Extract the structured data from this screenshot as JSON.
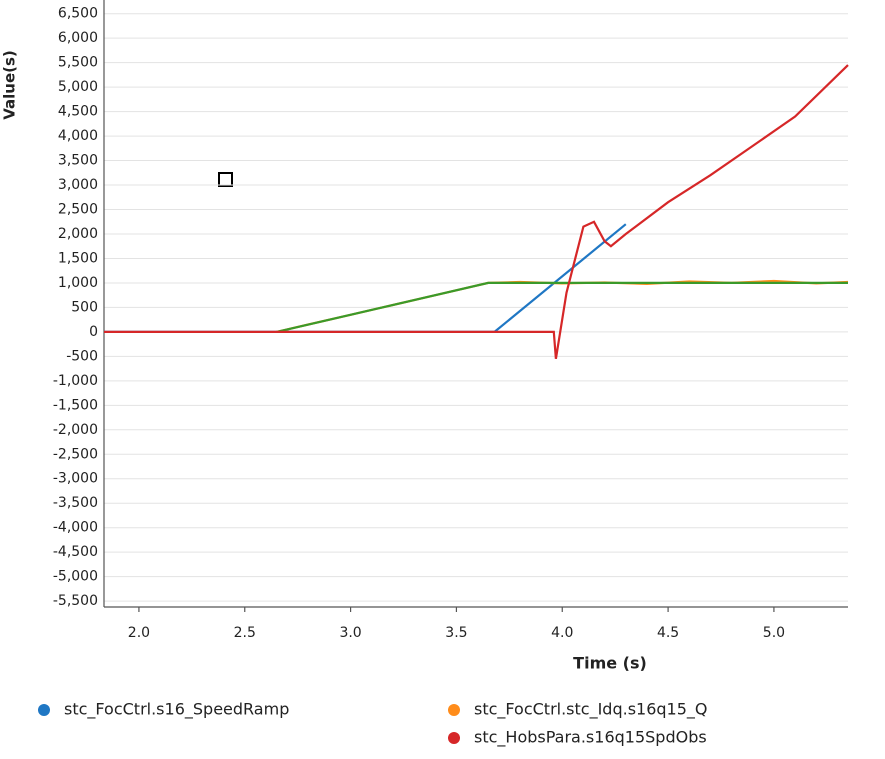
{
  "chart_data": {
    "type": "line",
    "y_label": "Value(s)",
    "x_label": "Time (s)",
    "xlim": [
      1.835,
      5.35
    ],
    "ylim": [
      -5620,
      6780
    ],
    "xticks": [
      {
        "value": 2,
        "label": "2.0"
      },
      2.5,
      {
        "value": 3,
        "label": "3.0"
      },
      3.5,
      {
        "value": 4,
        "label": "4.0"
      },
      4.5,
      {
        "value": 5,
        "label": "5.0"
      }
    ],
    "yticks": [
      {
        "value": 6500,
        "label": "6,500"
      },
      {
        "value": 6000,
        "label": "6,000"
      },
      {
        "value": 5500,
        "label": "5,500"
      },
      {
        "value": 5000,
        "label": "5,000"
      },
      {
        "value": 4500,
        "label": "4,500"
      },
      {
        "value": 4000,
        "label": "4,000"
      },
      {
        "value": 3500,
        "label": "3,500"
      },
      {
        "value": 3000,
        "label": "3,000"
      },
      {
        "value": 2500,
        "label": "2,500"
      },
      {
        "value": 2000,
        "label": "2,000"
      },
      {
        "value": 1500,
        "label": "1,500"
      },
      {
        "value": 1000,
        "label": "1,000"
      },
      500,
      0,
      -500,
      {
        "value": -1000,
        "label": "-1,000"
      },
      {
        "value": -1500,
        "label": "-1,500"
      },
      {
        "value": -2000,
        "label": "-2,000"
      },
      {
        "value": -2500,
        "label": "-2,500"
      },
      {
        "value": -3000,
        "label": "-3,000"
      },
      {
        "value": -3500,
        "label": "-3,500"
      },
      {
        "value": -4000,
        "label": "-4,000"
      },
      {
        "value": -4500,
        "label": "-4,500"
      },
      {
        "value": -5000,
        "label": "-5,000"
      },
      {
        "value": -5500,
        "label": "-5,500"
      }
    ],
    "grid": true,
    "series": [
      {
        "name": "stc_FocCtrl.s16_SpeedRamp",
        "color": "#1f77c4",
        "x": [
          1.835,
          3.68,
          4.3
        ],
        "values": [
          0,
          0,
          2200
        ]
      },
      {
        "name": "stc_FocCtrl.stc_Idq.s16q15_Q",
        "color": "#ff8c1a",
        "x": [
          2.65,
          2.8,
          3.0,
          3.2,
          3.4,
          3.65,
          3.8,
          4.0,
          4.2,
          4.4,
          4.6,
          4.8,
          5.0,
          5.2,
          5.35
        ],
        "values": [
          0,
          150,
          350,
          550,
          750,
          1000,
          1020,
          990,
          1010,
          980,
          1030,
          1000,
          1040,
          990,
          1020
        ]
      },
      {
        "color": "#3a9a2a",
        "x": [
          2.65,
          3.65,
          5.35
        ],
        "values": [
          0,
          1000,
          1000
        ]
      },
      {
        "name": "stc_HobsPara.s16q15SpdObs",
        "color": "#d62728",
        "x": [
          1.835,
          3.96,
          3.97,
          4.02,
          4.1,
          4.15,
          4.2,
          4.23,
          4.3,
          4.5,
          4.7,
          4.9,
          5.1,
          5.35
        ],
        "values": [
          0,
          0,
          -550,
          800,
          2150,
          2250,
          1850,
          1750,
          2000,
          2650,
          3200,
          3800,
          4400,
          5450
        ]
      }
    ]
  }
}
